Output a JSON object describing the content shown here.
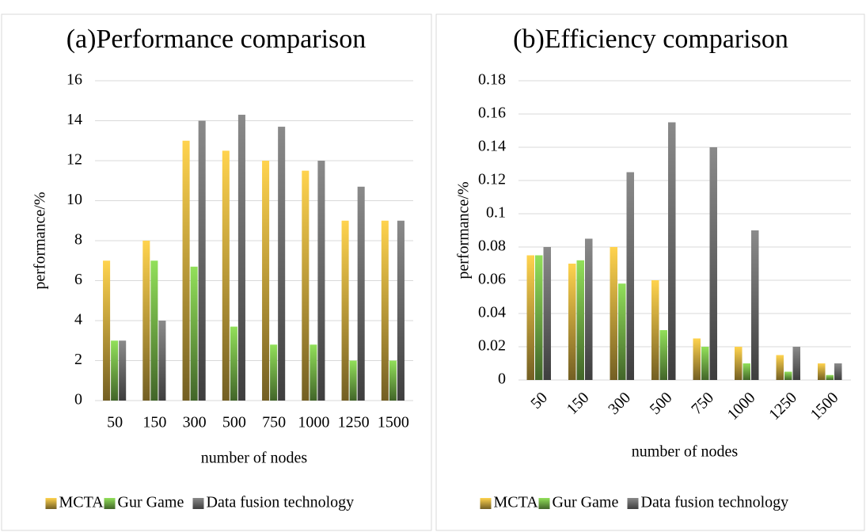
{
  "chart_data": [
    {
      "type": "bar",
      "title": "(a)Performance comparison",
      "x_label": "number of nodes",
      "y_label": "performance/%",
      "categories": [
        "50",
        "150",
        "300",
        "500",
        "750",
        "1000",
        "1250",
        "1500"
      ],
      "series": [
        {
          "name": "MCTA",
          "color": "#ffd34e",
          "values": [
            7,
            8,
            13,
            12.5,
            12,
            11.5,
            9,
            9
          ]
        },
        {
          "name": "Gur Game",
          "color": "#92e05a",
          "values": [
            3,
            7,
            6.7,
            3.7,
            2.8,
            2.8,
            2,
            2
          ]
        },
        {
          "name": "Data fusion technology",
          "color": "#8a8a8a",
          "values": [
            3,
            4,
            14,
            14.3,
            13.7,
            12,
            10.7,
            9
          ]
        }
      ],
      "ylim": [
        0,
        16
      ],
      "yticks": [
        0,
        2,
        4,
        6,
        8,
        10,
        12,
        14,
        16
      ],
      "grid": true,
      "legend": "bottom",
      "xtick_rotation": 0
    },
    {
      "type": "bar",
      "title": "(b)Efficiency comparison",
      "x_label": "number of nodes",
      "y_label": "performance/%",
      "categories": [
        "50",
        "150",
        "300",
        "500",
        "750",
        "1000",
        "1250",
        "1500"
      ],
      "series": [
        {
          "name": "MCTA",
          "color": "#ffd34e",
          "values": [
            0.075,
            0.07,
            0.08,
            0.06,
            0.025,
            0.02,
            0.015,
            0.01
          ]
        },
        {
          "name": "Gur Game",
          "color": "#92e05a",
          "values": [
            0.075,
            0.072,
            0.058,
            0.03,
            0.02,
            0.01,
            0.005,
            0.003
          ]
        },
        {
          "name": "Data fusion technology",
          "color": "#8a8a8a",
          "values": [
            0.08,
            0.085,
            0.125,
            0.155,
            0.14,
            0.09,
            0.02,
            0.01
          ]
        }
      ],
      "ylim": [
        0,
        0.18
      ],
      "yticks": [
        0,
        0.02,
        0.04,
        0.06,
        0.08,
        0.1,
        0.12,
        0.14,
        0.16,
        0.18
      ],
      "grid": true,
      "legend": "bottom",
      "xtick_rotation": -45
    }
  ]
}
